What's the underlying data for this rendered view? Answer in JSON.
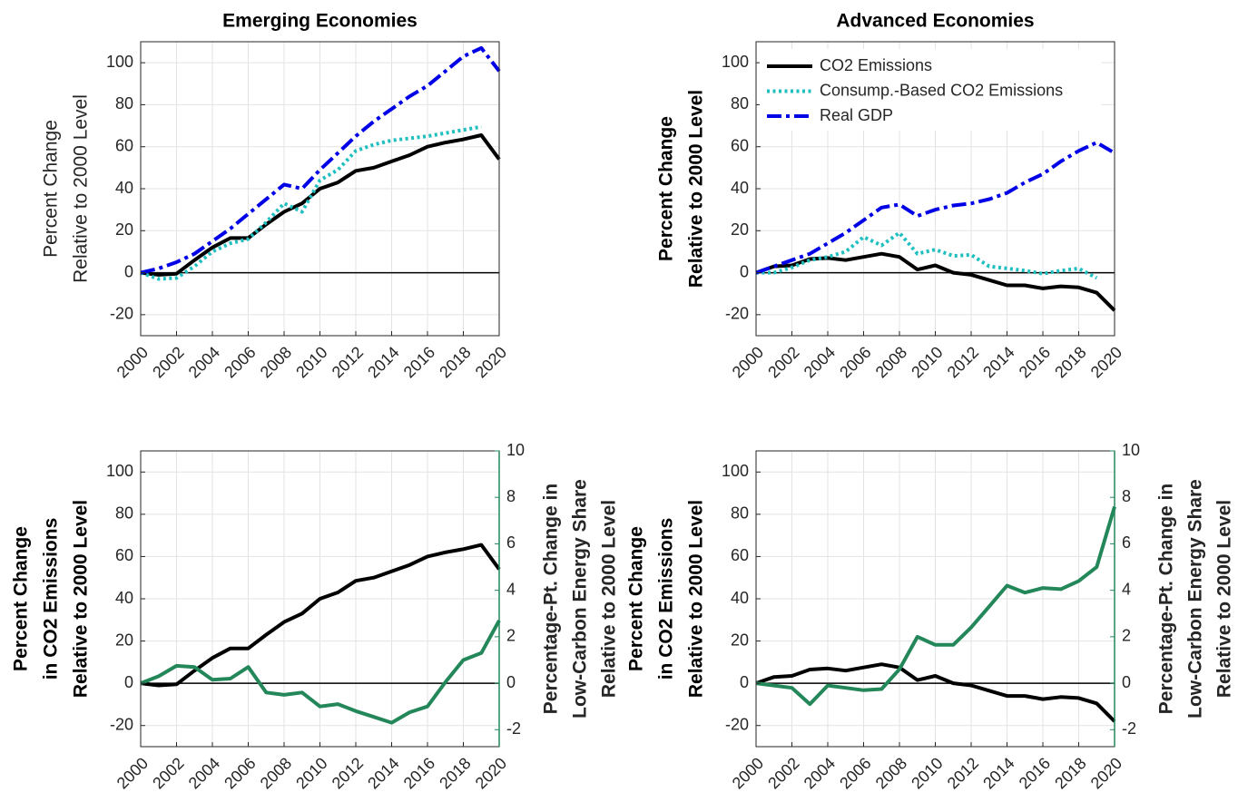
{
  "chart_data": [
    {
      "type": "line",
      "title": "Emerging Economies",
      "ylabel": [
        "Percent Change",
        "Relative to 2000 Level"
      ],
      "ylabel_weight": "normal",
      "x": [
        2000,
        2001,
        2002,
        2003,
        2004,
        2005,
        2006,
        2007,
        2008,
        2009,
        2010,
        2011,
        2012,
        2013,
        2014,
        2015,
        2016,
        2017,
        2018,
        2019,
        2020
      ],
      "xlim": [
        2000,
        2020
      ],
      "xticks": [
        2000,
        2002,
        2004,
        2006,
        2008,
        2010,
        2012,
        2014,
        2016,
        2018,
        2020
      ],
      "ylim": [
        -30,
        110
      ],
      "yticks": [
        -20,
        0,
        20,
        40,
        60,
        80,
        100
      ],
      "grid": true,
      "series": [
        {
          "color": "#000000",
          "dash": "solid",
          "values": [
            0,
            -1,
            -0.5,
            6,
            12,
            16.5,
            16.5,
            23,
            29,
            33,
            40,
            43,
            48.5,
            50,
            53,
            56,
            60,
            62,
            63.5,
            65.5,
            54
          ]
        },
        {
          "color": "#1fbfbf",
          "dash": "dotted",
          "values": [
            0,
            -3,
            -2.5,
            3,
            10,
            14,
            16,
            24,
            33,
            29,
            44,
            49,
            58,
            61,
            63,
            64,
            65,
            66.5,
            68,
            69.5,
            null
          ]
        },
        {
          "color": "#0000e6",
          "dash": "dashdot",
          "values": [
            0,
            2,
            5,
            9,
            15,
            21,
            28,
            35,
            42,
            40,
            49,
            57,
            65,
            72,
            78,
            84,
            89,
            96,
            103,
            107,
            96
          ]
        }
      ]
    },
    {
      "type": "line",
      "title": "Advanced Economies",
      "ylabel": [
        "Percent Change",
        "Relative to 2000 Level"
      ],
      "ylabel_weight": "bold",
      "x": [
        2000,
        2001,
        2002,
        2003,
        2004,
        2005,
        2006,
        2007,
        2008,
        2009,
        2010,
        2011,
        2012,
        2013,
        2014,
        2015,
        2016,
        2017,
        2018,
        2019,
        2020
      ],
      "xlim": [
        2000,
        2020
      ],
      "xticks": [
        2000,
        2002,
        2004,
        2006,
        2008,
        2010,
        2012,
        2014,
        2016,
        2018,
        2020
      ],
      "ylim": [
        -30,
        110
      ],
      "yticks": [
        -20,
        0,
        20,
        40,
        60,
        80,
        100
      ],
      "grid": true,
      "legend": "upper left",
      "series": [
        {
          "name": "CO2 Emissions",
          "color": "#000000",
          "dash": "solid",
          "values": [
            0,
            3,
            3.5,
            6.5,
            7,
            6,
            7.5,
            9,
            7.5,
            1.5,
            3.5,
            0,
            -1,
            -3.5,
            -6,
            -6,
            -7.5,
            -6.5,
            -7,
            -9.5,
            -18
          ]
        },
        {
          "name": "Consump.-Based CO2 Emissions",
          "color": "#1fbfbf",
          "dash": "dotted",
          "values": [
            0,
            0,
            2.5,
            6,
            7.5,
            10,
            17,
            13,
            19,
            9,
            11,
            8,
            8.5,
            3,
            2,
            1,
            -0.5,
            1,
            2,
            -2.5,
            null
          ]
        },
        {
          "name": "Real GDP",
          "color": "#0000e6",
          "dash": "dashdot",
          "values": [
            0,
            3,
            6,
            9,
            14,
            19,
            25,
            31,
            32.5,
            27,
            30,
            32,
            33,
            35,
            38,
            43,
            47,
            53,
            58,
            62,
            57
          ]
        }
      ]
    },
    {
      "type": "line",
      "ylabel": [
        "Percent Change",
        "in CO2 Emissions",
        "Relative to 2000 Level"
      ],
      "ylabel_weight": "bold",
      "y2label": [
        "Percentage-Pt. Change in",
        "Low-Carbon Energy Share",
        "Relative to 2000 Level"
      ],
      "y2color": "#23875a",
      "x": [
        2000,
        2001,
        2002,
        2003,
        2004,
        2005,
        2006,
        2007,
        2008,
        2009,
        2010,
        2011,
        2012,
        2013,
        2014,
        2015,
        2016,
        2017,
        2018,
        2019,
        2020
      ],
      "xlim": [
        2000,
        2020
      ],
      "xticks": [
        2000,
        2002,
        2004,
        2006,
        2008,
        2010,
        2012,
        2014,
        2016,
        2018,
        2020
      ],
      "ylim": [
        -30,
        110
      ],
      "yticks": [
        -20,
        0,
        20,
        40,
        60,
        80,
        100
      ],
      "y2lim": [
        -2.73,
        10
      ],
      "y2ticks": [
        -2,
        0,
        2,
        4,
        6,
        8,
        10
      ],
      "grid": true,
      "series": [
        {
          "color": "#000000",
          "dash": "solid",
          "values": [
            0,
            -1,
            -0.5,
            6,
            12,
            16.5,
            16.5,
            23,
            29,
            33,
            40,
            43,
            48.5,
            50,
            53,
            56,
            60,
            62,
            63.5,
            65.5,
            54
          ]
        },
        {
          "color": "#23875a",
          "dash": "solid",
          "axis": "y2",
          "values": [
            0,
            0.3,
            0.75,
            0.7,
            0.15,
            0.2,
            0.7,
            -0.4,
            -0.5,
            -0.4,
            -1,
            -0.9,
            -1.2,
            -1.45,
            -1.7,
            -1.25,
            -1,
            0.05,
            1,
            1.3,
            2.7
          ]
        }
      ]
    },
    {
      "type": "line",
      "ylabel": [
        "Percent Change",
        "in CO2 Emissions",
        "Relative to 2000 Level"
      ],
      "ylabel_weight": "bold",
      "y2label": [
        "Percentage-Pt. Change in",
        "Low-Carbon Energy Share",
        "Relative to 2000 Level"
      ],
      "y2color": "#23875a",
      "x": [
        2000,
        2001,
        2002,
        2003,
        2004,
        2005,
        2006,
        2007,
        2008,
        2009,
        2010,
        2011,
        2012,
        2013,
        2014,
        2015,
        2016,
        2017,
        2018,
        2019,
        2020
      ],
      "xlim": [
        2000,
        2020
      ],
      "xticks": [
        2000,
        2002,
        2004,
        2006,
        2008,
        2010,
        2012,
        2014,
        2016,
        2018,
        2020
      ],
      "ylim": [
        -30,
        110
      ],
      "yticks": [
        -20,
        0,
        20,
        40,
        60,
        80,
        100
      ],
      "y2lim": [
        -2.73,
        10
      ],
      "y2ticks": [
        -2,
        0,
        2,
        4,
        6,
        8,
        10
      ],
      "grid": true,
      "series": [
        {
          "color": "#000000",
          "dash": "solid",
          "values": [
            0,
            3,
            3.5,
            6.5,
            7,
            6,
            7.5,
            9,
            7.5,
            1.5,
            3.5,
            0,
            -1,
            -3.5,
            -6,
            -6,
            -7.5,
            -6.5,
            -7,
            -9.5,
            -18
          ]
        },
        {
          "color": "#23875a",
          "dash": "solid",
          "axis": "y2",
          "values": [
            0,
            -0.1,
            -0.2,
            -0.9,
            -0.1,
            -0.2,
            -0.3,
            -0.25,
            0.6,
            2,
            1.65,
            1.65,
            2.4,
            3.3,
            4.2,
            3.9,
            4.1,
            4.05,
            4.4,
            5,
            7.6
          ]
        }
      ]
    }
  ]
}
